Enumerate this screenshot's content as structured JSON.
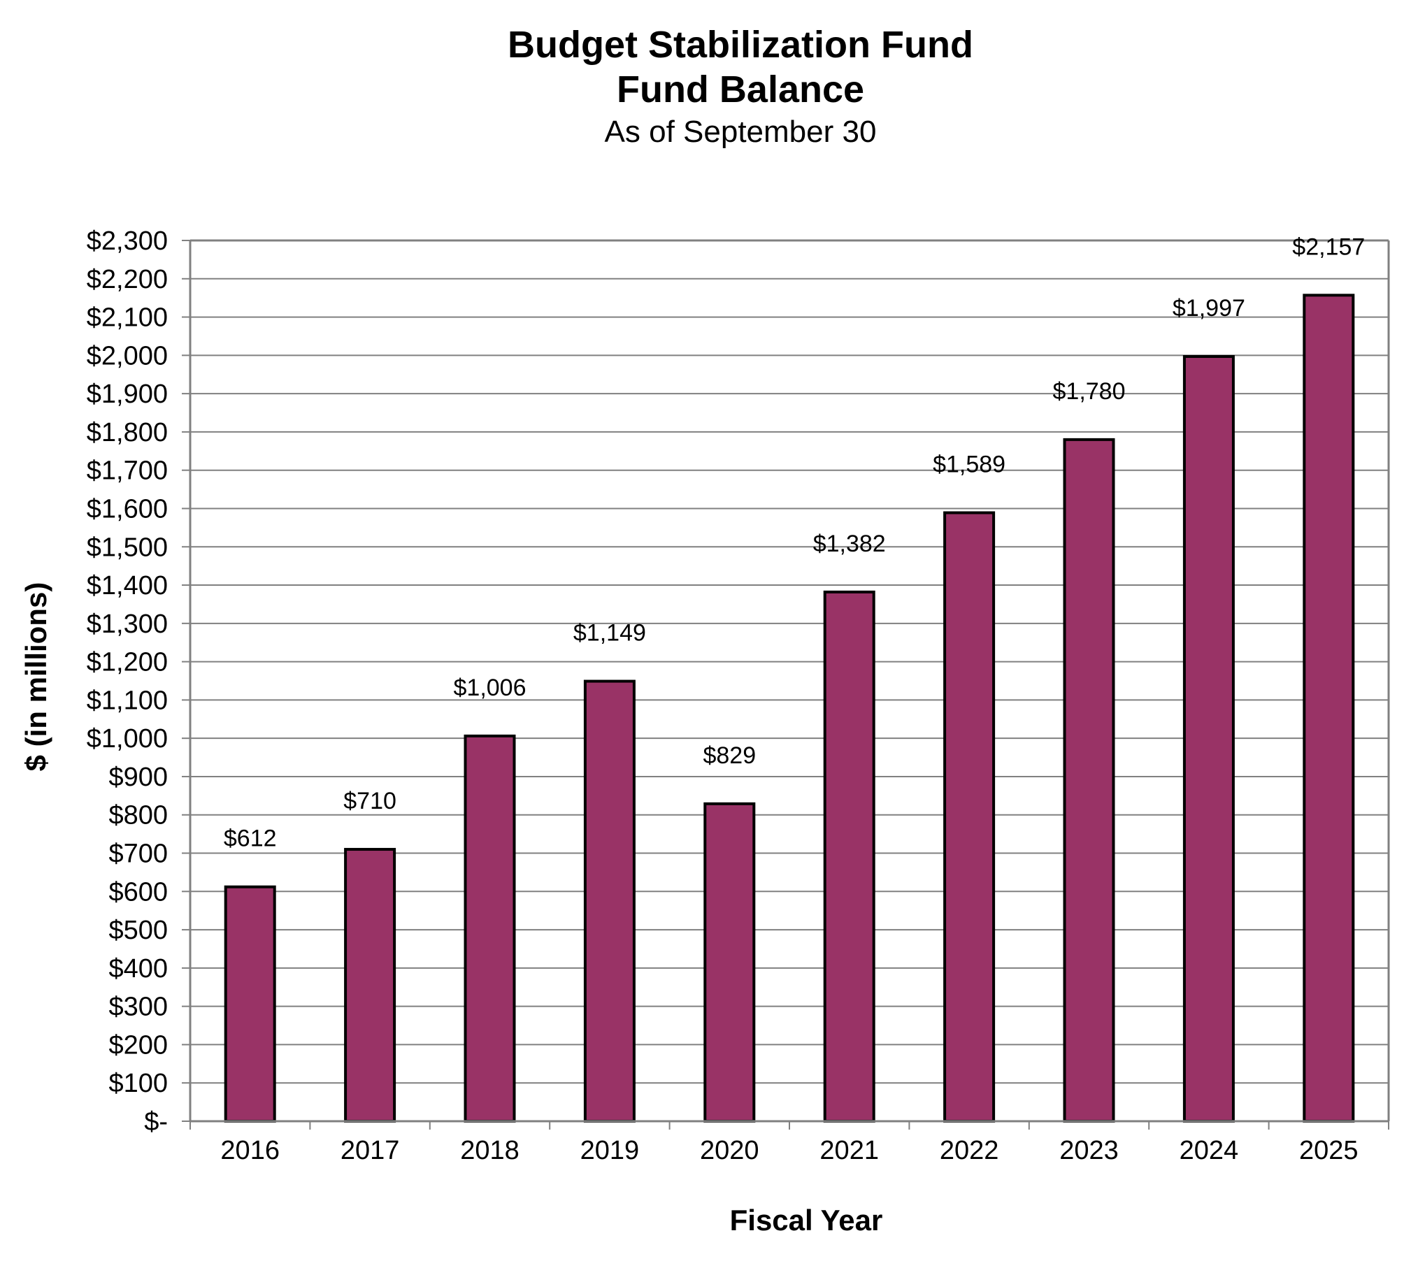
{
  "chart_data": {
    "type": "bar",
    "title": "Budget Stabilization Fund",
    "title_line2": "Fund Balance",
    "subtitle": "As of September 30",
    "xlabel": "Fiscal Year",
    "ylabel": "$ (in millions)",
    "categories": [
      "2016",
      "2017",
      "2018",
      "2019",
      "2020",
      "2021",
      "2022",
      "2023",
      "2024",
      "2025"
    ],
    "values": [
      612,
      710,
      1006,
      1149,
      829,
      1382,
      1589,
      1780,
      1997,
      2157
    ],
    "data_labels": [
      "$612",
      "$710",
      "$1,006",
      "$1,149",
      "$829",
      "$1,382",
      "$1,589",
      "$1,780",
      "$1,997",
      "$2,157"
    ],
    "ylim": [
      0,
      2300
    ],
    "yticks": [
      0,
      100,
      200,
      300,
      400,
      500,
      600,
      700,
      800,
      900,
      1000,
      1100,
      1200,
      1300,
      1400,
      1500,
      1600,
      1700,
      1800,
      1900,
      2000,
      2100,
      2200,
      2300
    ],
    "ytick_labels": [
      "$-",
      "$100",
      "$200",
      "$300",
      "$400",
      "$500",
      "$600",
      "$700",
      "$800",
      "$900",
      "$1,000",
      "$1,100",
      "$1,200",
      "$1,300",
      "$1,400",
      "$1,500",
      "$1,600",
      "$1,700",
      "$1,800",
      "$1,900",
      "$2,000",
      "$2,100",
      "$2,200",
      "$2,300"
    ],
    "grid": true,
    "legend": "none",
    "bar_color": "#993366",
    "bar_edge_color": "#000000",
    "grid_color": "#808080"
  }
}
